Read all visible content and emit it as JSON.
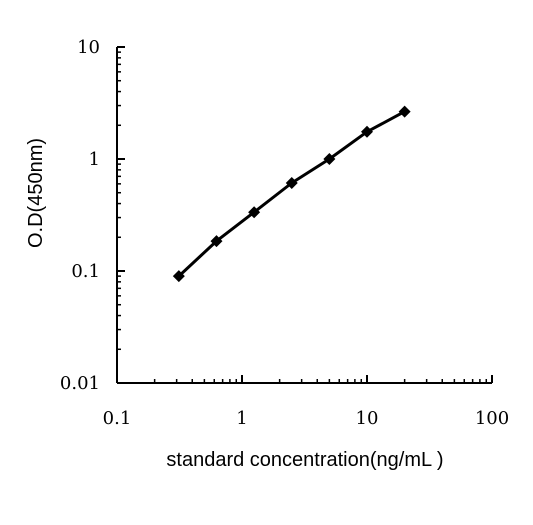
{
  "chart_data": {
    "type": "line",
    "title": "",
    "xlabel": "standard concentration(ng/mL )",
    "ylabel": "O.D(450nm)",
    "x_scale": "log",
    "y_scale": "log",
    "xlim": [
      0.1,
      100
    ],
    "ylim": [
      0.01,
      10
    ],
    "grid": false,
    "legend": "none",
    "x_tick_labels": [
      "0.1",
      "1",
      "10",
      "100"
    ],
    "y_tick_labels": [
      "10",
      "1",
      "0.1",
      "0.01"
    ],
    "series": [
      {
        "marker": "diamond",
        "color": "#000000",
        "x": [
          0.3125,
          0.625,
          1.25,
          2.5,
          5,
          10,
          20
        ],
        "y": [
          0.09,
          0.185,
          0.335,
          0.61,
          1.0,
          1.75,
          2.65
        ]
      }
    ]
  }
}
